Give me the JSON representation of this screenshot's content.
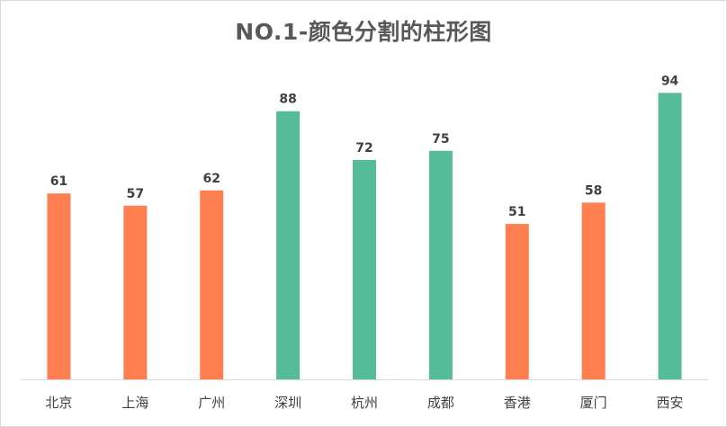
{
  "chart_data": {
    "type": "bar",
    "title": "NO.1-颜色分割的柱形图",
    "xlabel": "",
    "ylabel": "",
    "ylim": [
      0,
      100
    ],
    "grid": false,
    "legend": "none",
    "categories": [
      "北京",
      "上海",
      "广州",
      "深圳",
      "杭州",
      "成都",
      "香港",
      "厦门",
      "西安"
    ],
    "values": [
      61,
      57,
      62,
      88,
      72,
      75,
      51,
      58,
      94
    ],
    "threshold": 70,
    "colors": {
      "below_threshold": "#ff7f50",
      "above_threshold": "#55bb99",
      "axis": "#d9d9d9"
    }
  }
}
